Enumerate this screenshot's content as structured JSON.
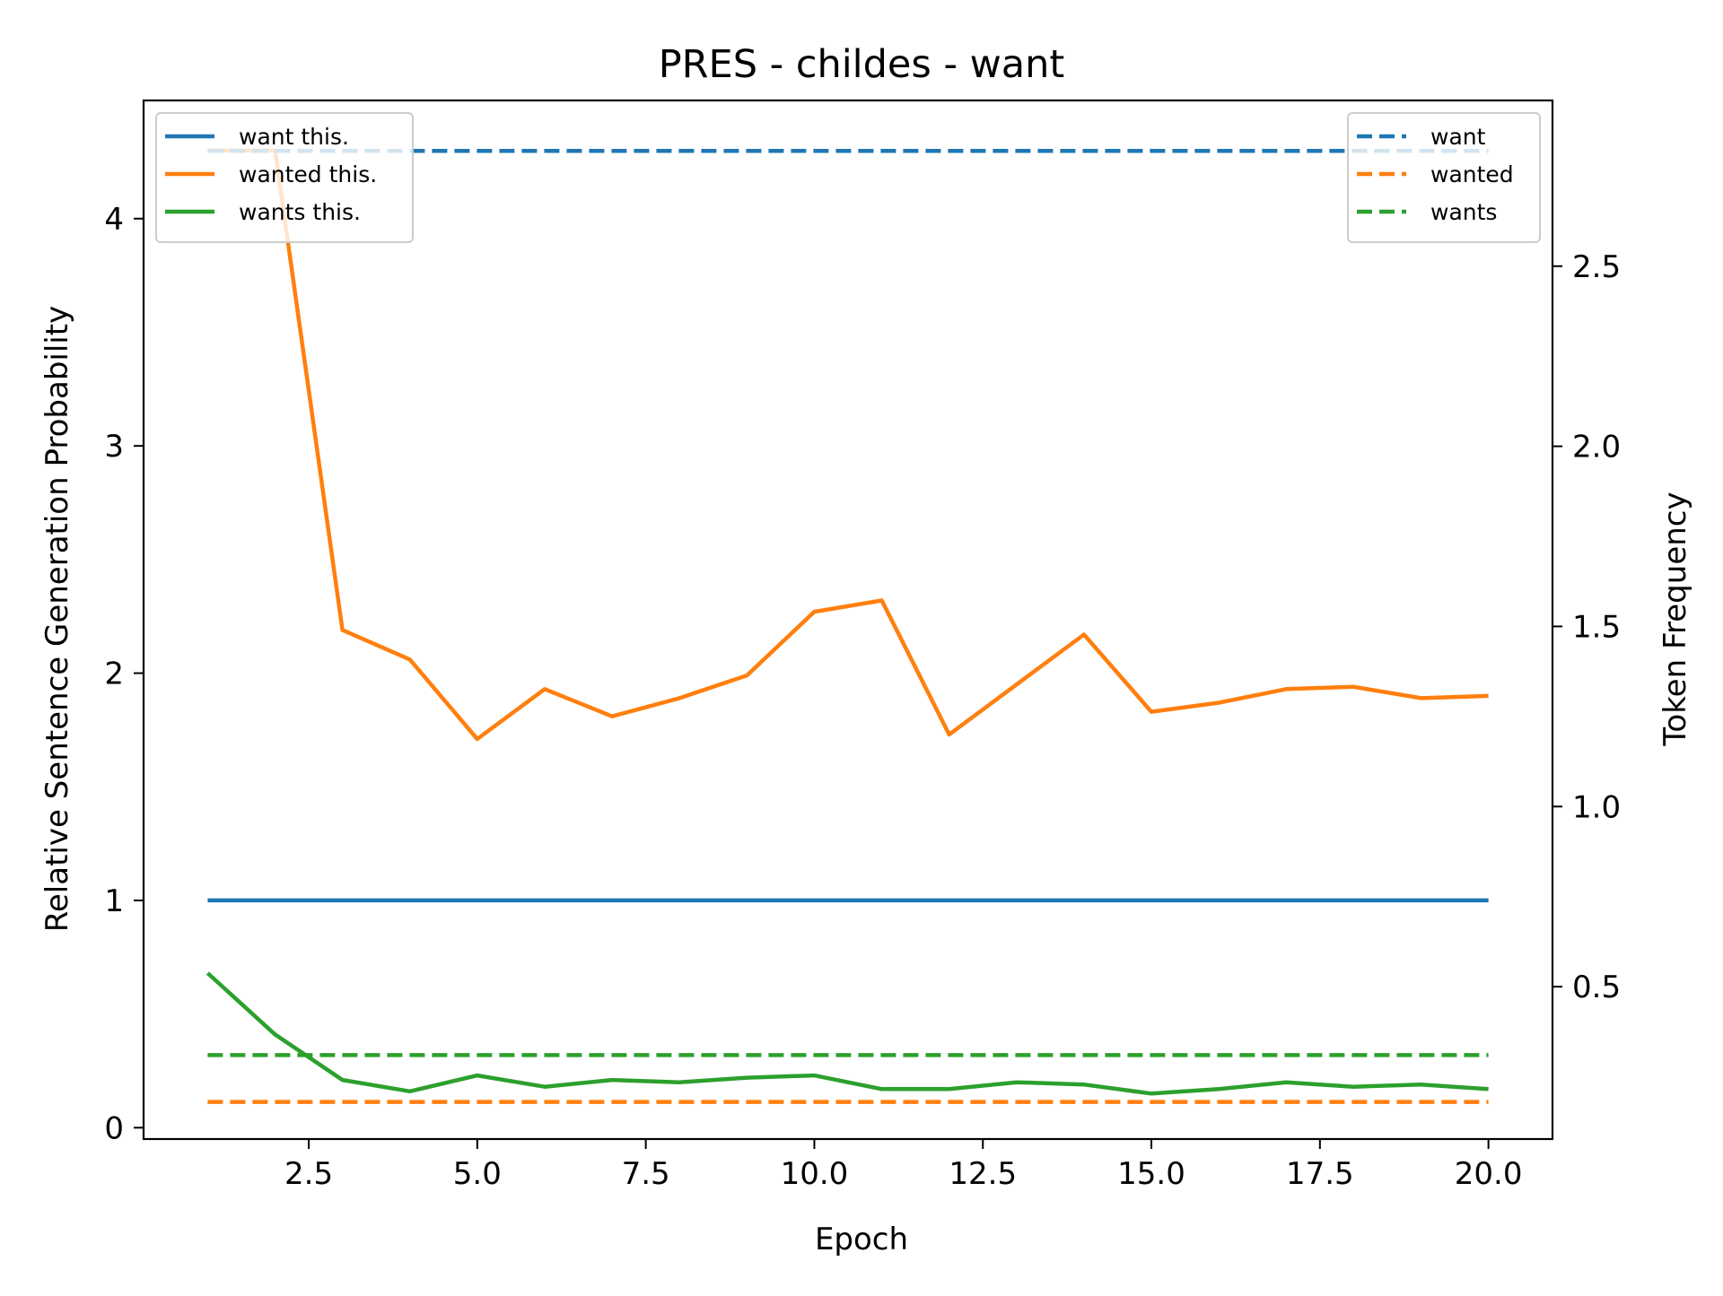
{
  "chart_data": {
    "type": "line",
    "title": "PRES - childes - want",
    "xlabel": "Epoch",
    "ylabel": "Relative Sentence Generation Probability",
    "y2label": "Token Frequency",
    "xlim": [
      0.05,
      20.95
    ],
    "ylim": [
      -0.05,
      4.52
    ],
    "y2lim": [
      0.077,
      2.96
    ],
    "xticks": [
      2.5,
      5.0,
      7.5,
      10.0,
      12.5,
      15.0,
      17.5,
      20.0
    ],
    "xtick_labels": [
      "2.5",
      "5.0",
      "7.5",
      "10.0",
      "12.5",
      "15.0",
      "17.5",
      "20.0"
    ],
    "yticks": [
      0,
      1,
      2,
      3,
      4
    ],
    "ytick_labels": [
      "0",
      "1",
      "2",
      "3",
      "4"
    ],
    "y2ticks": [
      0.5,
      1.0,
      1.5,
      2.0,
      2.5
    ],
    "y2tick_labels": [
      "0.5",
      "1.0",
      "1.5",
      "2.0",
      "2.5"
    ],
    "grid": false,
    "x": [
      1,
      2,
      3,
      4,
      5,
      6,
      7,
      8,
      9,
      10,
      11,
      12,
      13,
      14,
      15,
      16,
      17,
      18,
      19,
      20
    ],
    "series": [
      {
        "name": "want this.",
        "axis": "left",
        "style": "solid",
        "color": "#1f77b4",
        "values": [
          1,
          1,
          1,
          1,
          1,
          1,
          1,
          1,
          1,
          1,
          1,
          1,
          1,
          1,
          1,
          1,
          1,
          1,
          1,
          1
        ]
      },
      {
        "name": "wanted this.",
        "axis": "left",
        "style": "solid",
        "color": "#ff7f0e",
        "values": [
          4.3,
          4.3,
          2.19,
          2.06,
          1.71,
          1.93,
          1.81,
          1.89,
          1.99,
          2.27,
          2.32,
          1.73,
          1.95,
          2.17,
          1.83,
          1.87,
          1.93,
          1.94,
          1.89,
          1.9
        ]
      },
      {
        "name": "wants this.",
        "axis": "left",
        "style": "solid",
        "color": "#2ca02c",
        "values": [
          0.68,
          0.41,
          0.21,
          0.16,
          0.23,
          0.18,
          0.21,
          0.2,
          0.22,
          0.23,
          0.17,
          0.17,
          0.2,
          0.19,
          0.15,
          0.17,
          0.2,
          0.18,
          0.19,
          0.17
        ]
      },
      {
        "name": "want",
        "axis": "right",
        "style": "dashed",
        "color": "#1f77b4",
        "values": [
          2.82,
          2.82,
          2.82,
          2.82,
          2.82,
          2.82,
          2.82,
          2.82,
          2.82,
          2.82,
          2.82,
          2.82,
          2.82,
          2.82,
          2.82,
          2.82,
          2.82,
          2.82,
          2.82,
          2.82
        ]
      },
      {
        "name": "wanted",
        "axis": "right",
        "style": "dashed",
        "color": "#ff7f0e",
        "values": [
          0.18,
          0.18,
          0.18,
          0.18,
          0.18,
          0.18,
          0.18,
          0.18,
          0.18,
          0.18,
          0.18,
          0.18,
          0.18,
          0.18,
          0.18,
          0.18,
          0.18,
          0.18,
          0.18,
          0.18
        ]
      },
      {
        "name": "wants",
        "axis": "right",
        "style": "dashed",
        "color": "#2ca02c",
        "values": [
          0.31,
          0.31,
          0.31,
          0.31,
          0.31,
          0.31,
          0.31,
          0.31,
          0.31,
          0.31,
          0.31,
          0.31,
          0.31,
          0.31,
          0.31,
          0.31,
          0.31,
          0.31,
          0.31,
          0.31
        ]
      }
    ],
    "legend_left": {
      "placement": "upper-left",
      "entries": [
        "want this.",
        "wanted this.",
        "wants this."
      ]
    },
    "legend_right": {
      "placement": "upper-right",
      "entries": [
        "want",
        "wanted",
        "wants"
      ]
    }
  }
}
